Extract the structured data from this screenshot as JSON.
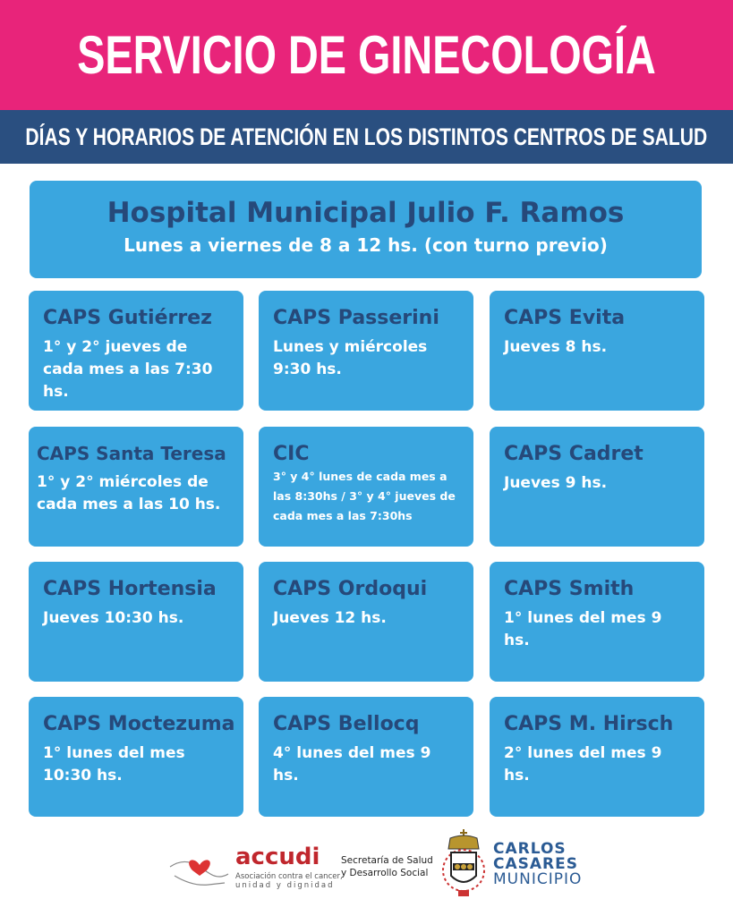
{
  "header": {
    "title": "SERVICIO DE GINECOLOGÍA",
    "subtitle": "DÍAS Y HORARIOS DE ATENCIÓN EN LOS DISTINTOS CENTROS DE SALUD"
  },
  "hospital": {
    "name": "Hospital Municipal Julio F. Ramos",
    "schedule": "Lunes a viernes de 8 a 12 hs. (con turno previo)"
  },
  "centers": [
    {
      "name": "CAPS Gutiérrez",
      "schedule": "1° y 2° jueves de cada mes a las 7:30 hs."
    },
    {
      "name": "CAPS Passerini",
      "schedule": "Lunes y miércoles 9:30 hs."
    },
    {
      "name": "CAPS Evita",
      "schedule": "Jueves 8 hs."
    },
    {
      "name": "CAPS Santa Teresa",
      "schedule": "1° y 2° miércoles de cada mes a las 10 hs."
    },
    {
      "name": "CIC",
      "schedule": "3° y 4° lunes de cada mes a las 8:30hs / 3° y 4° jueves de cada mes a las 7:30hs"
    },
    {
      "name": "CAPS Cadret",
      "schedule": "Jueves 9 hs."
    },
    {
      "name": "CAPS Hortensia",
      "schedule": "Jueves 10:30 hs."
    },
    {
      "name": "CAPS Ordoqui",
      "schedule": "Jueves 12 hs."
    },
    {
      "name": "CAPS Smith",
      "schedule": "1° lunes del mes 9 hs."
    },
    {
      "name": "CAPS Moctezuma",
      "schedule": "1° lunes del mes 10:30 hs."
    },
    {
      "name": "CAPS Bellocq",
      "schedule": "4° lunes del mes 9 hs."
    },
    {
      "name": "CAPS M. Hirsch",
      "schedule": "2° lunes del mes 9 hs."
    }
  ],
  "footer": {
    "accudi": {
      "name": "accudi",
      "tagline_1": "Asociación contra el cancer,",
      "tagline_2": "unidad y dignidad"
    },
    "secretaria_1": "Secretaría de Salud",
    "secretaria_2": "y Desarrollo Social",
    "municipio": {
      "line1": "CARLOS",
      "line2": "CASARES",
      "line3": "MUNICIPIO"
    }
  },
  "colors": {
    "pink": "#e8247a",
    "navy": "#2a4f80",
    "card": "#3aa6df",
    "title_text": "#26497a"
  }
}
